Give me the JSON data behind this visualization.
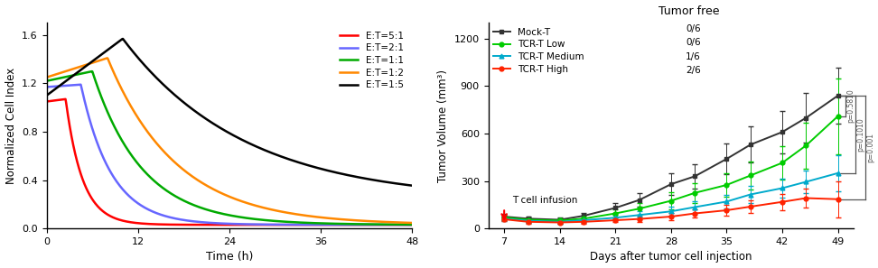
{
  "left": {
    "series": [
      {
        "label": "E:T=5:1",
        "color": "#ff0000",
        "start_val": 1.05,
        "peak_time": 2.5,
        "peak_val": 1.07,
        "decay_tau": 2.2,
        "end_val": 0.03
      },
      {
        "label": "E:T=2:1",
        "color": "#6666ff",
        "start_val": 1.17,
        "peak_time": 4.5,
        "peak_val": 1.19,
        "decay_tau": 4.0,
        "end_val": 0.03
      },
      {
        "label": "E:T=1:1",
        "color": "#00aa00",
        "start_val": 1.22,
        "peak_time": 6.0,
        "peak_val": 1.3,
        "decay_tau": 6.5,
        "end_val": 0.03
      },
      {
        "label": "E:T=1:2",
        "color": "#ff8800",
        "start_val": 1.25,
        "peak_time": 8.0,
        "peak_val": 1.41,
        "decay_tau": 9.0,
        "end_val": 0.03
      },
      {
        "label": "E:T=1:5",
        "color": "#000000",
        "start_val": 1.1,
        "peak_time": 10.0,
        "peak_val": 1.57,
        "decay_tau": 16.0,
        "end_val": 0.23
      }
    ],
    "xlim": [
      0,
      48
    ],
    "ylim": [
      0.0,
      1.7
    ],
    "xticks": [
      0,
      12,
      24,
      36,
      48
    ],
    "yticks": [
      0.0,
      0.4,
      0.8,
      1.2,
      1.6
    ],
    "xlabel": "Time (h)",
    "ylabel": "Normalized Cell Index"
  },
  "right": {
    "days": [
      7,
      10,
      14,
      17,
      21,
      24,
      28,
      31,
      35,
      38,
      42,
      45,
      49
    ],
    "mock_t": [
      75,
      62,
      55,
      80,
      130,
      180,
      280,
      330,
      440,
      530,
      610,
      700,
      840
    ],
    "mock_t_err": [
      18,
      14,
      14,
      18,
      32,
      42,
      68,
      78,
      95,
      115,
      135,
      155,
      175
    ],
    "tcr_low": [
      70,
      55,
      50,
      62,
      95,
      125,
      175,
      225,
      275,
      335,
      415,
      525,
      710
    ],
    "tcr_low_err": [
      18,
      13,
      13,
      18,
      28,
      38,
      52,
      62,
      72,
      88,
      108,
      145,
      240
    ],
    "tcr_med": [
      62,
      48,
      42,
      52,
      68,
      85,
      108,
      135,
      170,
      215,
      255,
      295,
      350
    ],
    "tcr_med_err": [
      14,
      11,
      11,
      14,
      18,
      22,
      28,
      35,
      42,
      52,
      62,
      72,
      115
    ],
    "tcr_high": [
      58,
      42,
      38,
      42,
      52,
      60,
      75,
      95,
      115,
      138,
      168,
      192,
      185
    ],
    "tcr_high_err": [
      13,
      10,
      9,
      11,
      13,
      17,
      23,
      27,
      32,
      42,
      52,
      60,
      115
    ],
    "colors": {
      "mock_t": "#333333",
      "tcr_low": "#00cc00",
      "tcr_med": "#00aacc",
      "tcr_high": "#ff2200"
    },
    "xlim": [
      5,
      51
    ],
    "ylim": [
      0,
      1300
    ],
    "xticks": [
      7,
      14,
      21,
      28,
      35,
      42,
      49
    ],
    "yticks": [
      0,
      300,
      600,
      900,
      1200
    ],
    "xlabel": "Days after tumor cell injection",
    "ylabel": "Tumor Volume (mm³)",
    "title": "Tumor free",
    "legend_labels": [
      "Mock-T",
      "TCR-T Low",
      "TCR-T Medium",
      "TCR-T High"
    ],
    "legend_free": [
      "0/6",
      "0/6",
      "1/6",
      "2/6"
    ],
    "annotation_text": "T cell infusion",
    "p_values": [
      "p=0.5810",
      "p=0.1010",
      "p=0.001"
    ]
  }
}
